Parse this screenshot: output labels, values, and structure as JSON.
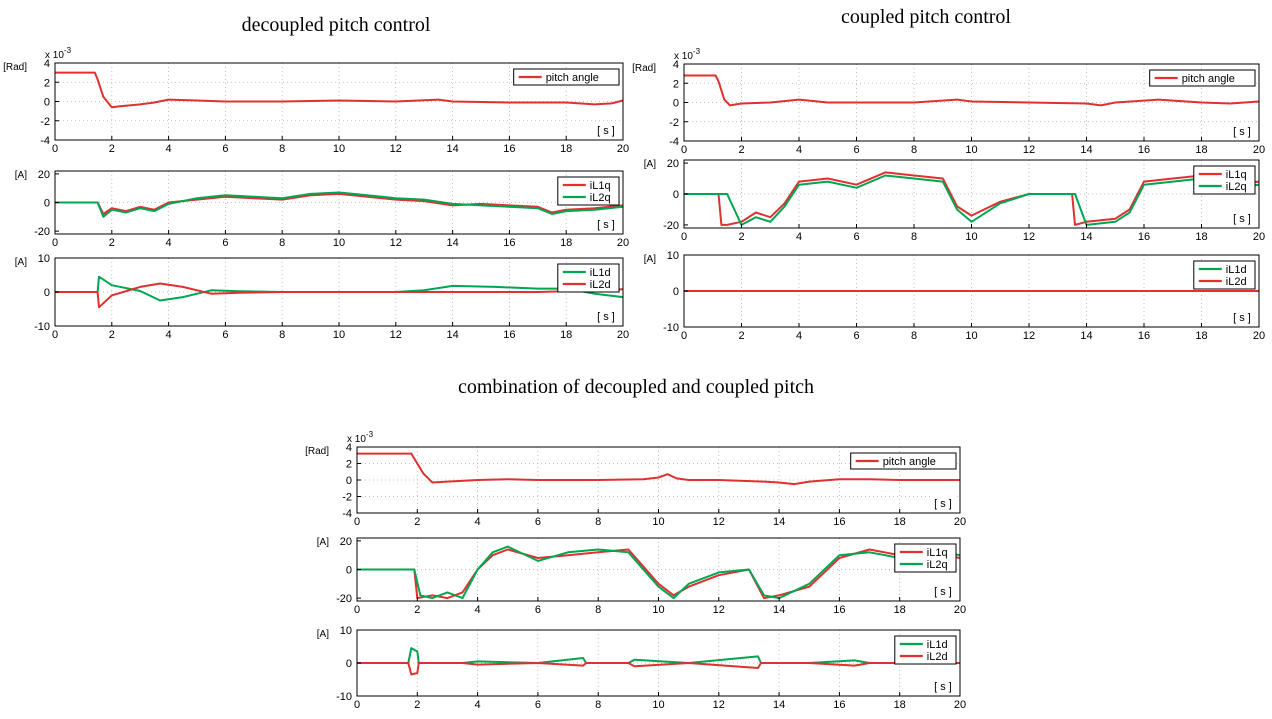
{
  "groups": [
    {
      "title": "decoupled pitch control"
    },
    {
      "title": "coupled pitch control"
    },
    {
      "title": "combination of decoupled and coupled pitch"
    }
  ],
  "colors": {
    "red": "#e03030",
    "green": "#00a651",
    "grid": "#b0b0b0"
  },
  "chart_data": [
    {
      "type": "line",
      "group": "decoupled pitch control",
      "panel": "pitch",
      "title": "",
      "ylabel": "[Rad]",
      "xlabel": "[ s ]",
      "exponent_label": "x 10",
      "exponent_sup": "-3",
      "xlim": [
        0,
        20
      ],
      "ylim": [
        -4,
        4
      ],
      "xticks": [
        0,
        2,
        4,
        6,
        8,
        10,
        12,
        14,
        16,
        18,
        20
      ],
      "yticks": [
        4,
        2,
        0,
        -2,
        -4
      ],
      "grid": true,
      "legend": "top-right",
      "series": [
        {
          "name": "pitch angle",
          "color": "red",
          "x": [
            0,
            1.4,
            1.5,
            1.7,
            2.0,
            2.3,
            3.0,
            3.5,
            4.0,
            5.0,
            6.0,
            8.0,
            10.0,
            12.0,
            13.5,
            14.0,
            16.0,
            18.0,
            19.0,
            19.6,
            20.0
          ],
          "y": [
            3.0,
            3.0,
            2.3,
            0.5,
            -0.6,
            -0.5,
            -0.3,
            -0.1,
            0.2,
            0.1,
            0.0,
            0.0,
            0.1,
            0.0,
            0.2,
            0.0,
            -0.1,
            -0.1,
            -0.3,
            -0.2,
            0.1
          ]
        }
      ]
    },
    {
      "type": "line",
      "group": "decoupled pitch control",
      "panel": "q-current",
      "ylabel": "[A]",
      "xlabel": "[ s ]",
      "xlim": [
        0,
        20
      ],
      "ylim": [
        -22,
        22
      ],
      "xticks": [
        0,
        2,
        4,
        6,
        8,
        10,
        12,
        14,
        16,
        18,
        20
      ],
      "yticks": [
        20,
        0,
        -20
      ],
      "grid": true,
      "legend": "top-right",
      "series": [
        {
          "name": "iL1q",
          "color": "red",
          "x": [
            0,
            1.5,
            1.7,
            2.0,
            2.5,
            3.0,
            3.5,
            4.0,
            5.0,
            6.0,
            7.0,
            8.0,
            9.0,
            10.0,
            11.0,
            12.0,
            13.0,
            14.0,
            15.0,
            16.0,
            17.0,
            17.5,
            18.0,
            19.0,
            20.0
          ],
          "y": [
            0,
            0,
            -8,
            -4,
            -6,
            -3,
            -5,
            0,
            2,
            4,
            3,
            2,
            5,
            6,
            4,
            2,
            1,
            -2,
            -1,
            -2,
            -3,
            -7,
            -5,
            -4,
            -2
          ]
        },
        {
          "name": "iL2q",
          "color": "green",
          "x": [
            0,
            1.5,
            1.7,
            2.0,
            2.5,
            3.0,
            3.5,
            4.0,
            5.0,
            6.0,
            7.0,
            8.0,
            9.0,
            10.0,
            11.0,
            12.0,
            13.0,
            14.0,
            15.0,
            16.0,
            17.0,
            17.5,
            18.0,
            19.0,
            20.0
          ],
          "y": [
            0,
            0,
            -10,
            -5,
            -7,
            -4,
            -6,
            -1,
            3,
            5,
            4,
            3,
            6,
            7,
            5,
            3,
            2,
            -1,
            -2,
            -3,
            -4,
            -8,
            -6,
            -5,
            -3
          ]
        }
      ]
    },
    {
      "type": "line",
      "group": "decoupled pitch control",
      "panel": "d-current",
      "ylabel": "[A]",
      "xlabel": "[ s ]",
      "xlim": [
        0,
        20
      ],
      "ylim": [
        -10,
        10
      ],
      "xticks": [
        0,
        2,
        4,
        6,
        8,
        10,
        12,
        14,
        16,
        18,
        20
      ],
      "yticks": [
        10,
        0,
        -10
      ],
      "grid": true,
      "legend": "top-right",
      "series": [
        {
          "name": "iL1d",
          "color": "green",
          "x": [
            0,
            1.5,
            1.55,
            2.0,
            3.0,
            3.7,
            4.5,
            5.5,
            6.5,
            8.0,
            10.0,
            12.0,
            13.0,
            14.0,
            15.5,
            17.0,
            18.0,
            19.0,
            20.0
          ],
          "y": [
            0,
            0,
            4.5,
            2.0,
            0.3,
            -2.5,
            -1.5,
            0.5,
            0.2,
            0.0,
            0.0,
            0.0,
            0.5,
            1.8,
            1.5,
            1.0,
            1.0,
            -0.5,
            -1.5
          ]
        },
        {
          "name": "iL2d",
          "color": "red",
          "x": [
            0,
            1.5,
            1.55,
            2.0,
            3.0,
            3.7,
            4.5,
            5.5,
            6.5,
            8.0,
            10.0,
            12.0,
            13.0,
            14.0,
            15.5,
            17.0,
            18.0,
            19.0,
            20.0
          ],
          "y": [
            0,
            0,
            -4.5,
            -1.0,
            1.5,
            2.5,
            1.5,
            -0.5,
            -0.2,
            0.0,
            0.0,
            0.0,
            0.0,
            0.0,
            0.0,
            0.0,
            0.2,
            0.5,
            0.8
          ]
        }
      ]
    },
    {
      "type": "line",
      "group": "coupled pitch control",
      "panel": "pitch",
      "ylabel": "[Rad]",
      "xlabel": "[ s ]",
      "exponent_label": "x 10",
      "exponent_sup": "-3",
      "xlim": [
        0,
        20
      ],
      "ylim": [
        -4,
        4
      ],
      "xticks": [
        0,
        2,
        4,
        6,
        8,
        10,
        12,
        14,
        16,
        18,
        20
      ],
      "yticks": [
        4,
        2,
        0,
        -2,
        -4
      ],
      "grid": true,
      "legend": "top-right",
      "series": [
        {
          "name": "pitch angle",
          "color": "red",
          "x": [
            0,
            1.1,
            1.2,
            1.4,
            1.6,
            2.0,
            3.0,
            4.0,
            5.0,
            6.0,
            8.0,
            9.5,
            10.0,
            12.0,
            14.0,
            14.5,
            15.0,
            16.0,
            16.5,
            18.0,
            19.0,
            20.0
          ],
          "y": [
            2.8,
            2.8,
            2.2,
            0.3,
            -0.3,
            -0.1,
            0.0,
            0.3,
            0.0,
            0.0,
            0.0,
            0.3,
            0.1,
            0.0,
            -0.1,
            -0.3,
            0.0,
            0.2,
            0.3,
            0.0,
            -0.1,
            0.1
          ]
        }
      ]
    },
    {
      "type": "line",
      "group": "coupled pitch control",
      "panel": "q-current",
      "ylabel": "[A]",
      "xlabel": "[ s ]",
      "xlim": [
        0,
        20
      ],
      "ylim": [
        -22,
        22
      ],
      "xticks": [
        0,
        2,
        4,
        6,
        8,
        10,
        12,
        14,
        16,
        18,
        20
      ],
      "yticks": [
        20,
        0,
        -20
      ],
      "grid": true,
      "legend": "top-right",
      "series": [
        {
          "name": "iL1q",
          "color": "red",
          "x": [
            0,
            1.2,
            1.3,
            1.5,
            2.0,
            2.5,
            3.0,
            3.5,
            4.0,
            5.0,
            6.0,
            7.0,
            8.0,
            9.0,
            9.5,
            10.0,
            11.0,
            12.0,
            13.5,
            13.6,
            14.0,
            15.0,
            15.5,
            16.0,
            17.0,
            18.0,
            19.0,
            20.0
          ],
          "y": [
            0,
            0,
            -20,
            -20,
            -18,
            -12,
            -15,
            -6,
            8,
            10,
            6,
            14,
            12,
            10,
            -8,
            -14,
            -5,
            0,
            0,
            -20,
            -18,
            -16,
            -10,
            8,
            10,
            12,
            6,
            8
          ]
        },
        {
          "name": "iL2q",
          "color": "green",
          "x": [
            0,
            1.2,
            1.5,
            2.0,
            2.5,
            3.0,
            3.5,
            4.0,
            5.0,
            6.0,
            7.0,
            8.0,
            9.0,
            9.5,
            10.0,
            11.0,
            12.0,
            13.6,
            14.0,
            15.0,
            15.5,
            16.0,
            17.0,
            18.0,
            19.0,
            20.0
          ],
          "y": [
            0,
            0,
            0,
            -20,
            -15,
            -18,
            -8,
            6,
            8,
            4,
            12,
            10,
            8,
            -10,
            -18,
            -6,
            0,
            0,
            -20,
            -18,
            -12,
            6,
            8,
            10,
            4,
            6
          ]
        }
      ]
    },
    {
      "type": "line",
      "group": "coupled pitch control",
      "panel": "d-current",
      "ylabel": "[A]",
      "xlabel": "[ s ]",
      "xlim": [
        0,
        20
      ],
      "ylim": [
        -10,
        10
      ],
      "xticks": [
        0,
        2,
        4,
        6,
        8,
        10,
        12,
        14,
        16,
        18,
        20
      ],
      "yticks": [
        10,
        0,
        -10
      ],
      "grid": true,
      "legend": "top-right",
      "series": [
        {
          "name": "iL1d",
          "color": "green",
          "x": [
            0,
            20
          ],
          "y": [
            0,
            0
          ]
        },
        {
          "name": "iL2d",
          "color": "red",
          "x": [
            0,
            20
          ],
          "y": [
            0,
            0
          ]
        }
      ]
    },
    {
      "type": "line",
      "group": "combination of decoupled and coupled pitch",
      "panel": "pitch",
      "ylabel": "[Rad]",
      "xlabel": "[ s ]",
      "exponent_label": "x 10",
      "exponent_sup": "-3",
      "xlim": [
        0,
        20
      ],
      "ylim": [
        -4,
        4
      ],
      "xticks": [
        0,
        2,
        4,
        6,
        8,
        10,
        12,
        14,
        16,
        18,
        20
      ],
      "yticks": [
        4,
        2,
        0,
        -2,
        -4
      ],
      "grid": true,
      "legend": "top-right",
      "series": [
        {
          "name": "pitch angle",
          "color": "red",
          "x": [
            0,
            1.8,
            1.9,
            2.2,
            2.5,
            3.0,
            4.0,
            5.0,
            6.0,
            8.0,
            9.5,
            10.0,
            10.3,
            10.6,
            11.0,
            12.0,
            13.5,
            14.0,
            14.5,
            15.0,
            16.0,
            17.0,
            18.0,
            20.0
          ],
          "y": [
            3.2,
            3.2,
            2.6,
            0.8,
            -0.3,
            -0.2,
            0.0,
            0.1,
            0.0,
            0.0,
            0.1,
            0.3,
            0.7,
            0.2,
            0.0,
            0.0,
            -0.2,
            -0.3,
            -0.5,
            -0.2,
            0.1,
            0.1,
            0.0,
            0.0
          ]
        }
      ]
    },
    {
      "type": "line",
      "group": "combination of decoupled and coupled pitch",
      "panel": "q-current",
      "ylabel": "[A]",
      "xlabel": "[ s ]",
      "xlim": [
        0,
        20
      ],
      "ylim": [
        -22,
        22
      ],
      "xticks": [
        0,
        2,
        4,
        6,
        8,
        10,
        12,
        14,
        16,
        18,
        20
      ],
      "yticks": [
        20,
        0,
        -20
      ],
      "grid": true,
      "legend": "top-right",
      "series": [
        {
          "name": "iL1q",
          "color": "red",
          "x": [
            0,
            1.9,
            2.0,
            2.5,
            3.0,
            3.5,
            4.0,
            4.5,
            5.0,
            6.0,
            7.0,
            8.0,
            9.0,
            10.0,
            10.5,
            11.0,
            12.0,
            13.0,
            13.5,
            14.0,
            15.0,
            16.0,
            17.0,
            18.0,
            19.0,
            20.0
          ],
          "y": [
            0,
            0,
            -20,
            -18,
            -20,
            -16,
            0,
            10,
            14,
            8,
            10,
            12,
            14,
            -10,
            -18,
            -12,
            -4,
            0,
            -20,
            -18,
            -12,
            8,
            14,
            10,
            12,
            8
          ]
        },
        {
          "name": "iL2q",
          "color": "green",
          "x": [
            0,
            1.9,
            2.1,
            2.5,
            3.0,
            3.5,
            4.0,
            4.5,
            5.0,
            6.0,
            7.0,
            8.0,
            9.0,
            10.0,
            10.5,
            11.0,
            12.0,
            13.0,
            13.5,
            14.0,
            15.0,
            16.0,
            17.0,
            18.0,
            19.0,
            20.0
          ],
          "y": [
            0,
            0,
            -18,
            -20,
            -16,
            -20,
            0,
            12,
            16,
            6,
            12,
            14,
            12,
            -12,
            -20,
            -10,
            -2,
            0,
            -18,
            -20,
            -10,
            10,
            12,
            8,
            14,
            10
          ]
        }
      ]
    },
    {
      "type": "line",
      "group": "combination of decoupled and coupled pitch",
      "panel": "d-current",
      "ylabel": "[A]",
      "xlabel": "[ s ]",
      "xlim": [
        0,
        20
      ],
      "ylim": [
        -10,
        10
      ],
      "xticks": [
        0,
        2,
        4,
        6,
        8,
        10,
        12,
        14,
        16,
        18,
        20
      ],
      "yticks": [
        10,
        0,
        -10
      ],
      "grid": true,
      "legend": "top-right",
      "series": [
        {
          "name": "iL1d",
          "color": "green",
          "x": [
            0,
            1.7,
            1.8,
            2.0,
            2.05,
            3.5,
            4.0,
            6.0,
            7.5,
            7.6,
            9.0,
            9.2,
            11.0,
            13.3,
            13.4,
            15.0,
            16.5,
            17.0,
            20.0
          ],
          "y": [
            0,
            0,
            4.5,
            3.5,
            0,
            0,
            0.5,
            0,
            1.5,
            0,
            0,
            1.0,
            0,
            2.0,
            0,
            0,
            0.8,
            0,
            0
          ]
        },
        {
          "name": "iL2d",
          "color": "red",
          "x": [
            0,
            1.7,
            1.8,
            2.0,
            2.05,
            3.5,
            4.0,
            6.0,
            7.5,
            7.6,
            9.0,
            9.2,
            11.0,
            13.3,
            13.4,
            15.0,
            16.5,
            17.0,
            20.0
          ],
          "y": [
            0,
            0,
            -3.5,
            -3.0,
            0,
            0,
            -0.5,
            0,
            -0.8,
            0,
            0,
            -1.0,
            0,
            -1.5,
            0,
            0,
            -0.8,
            0,
            0
          ]
        }
      ]
    }
  ]
}
